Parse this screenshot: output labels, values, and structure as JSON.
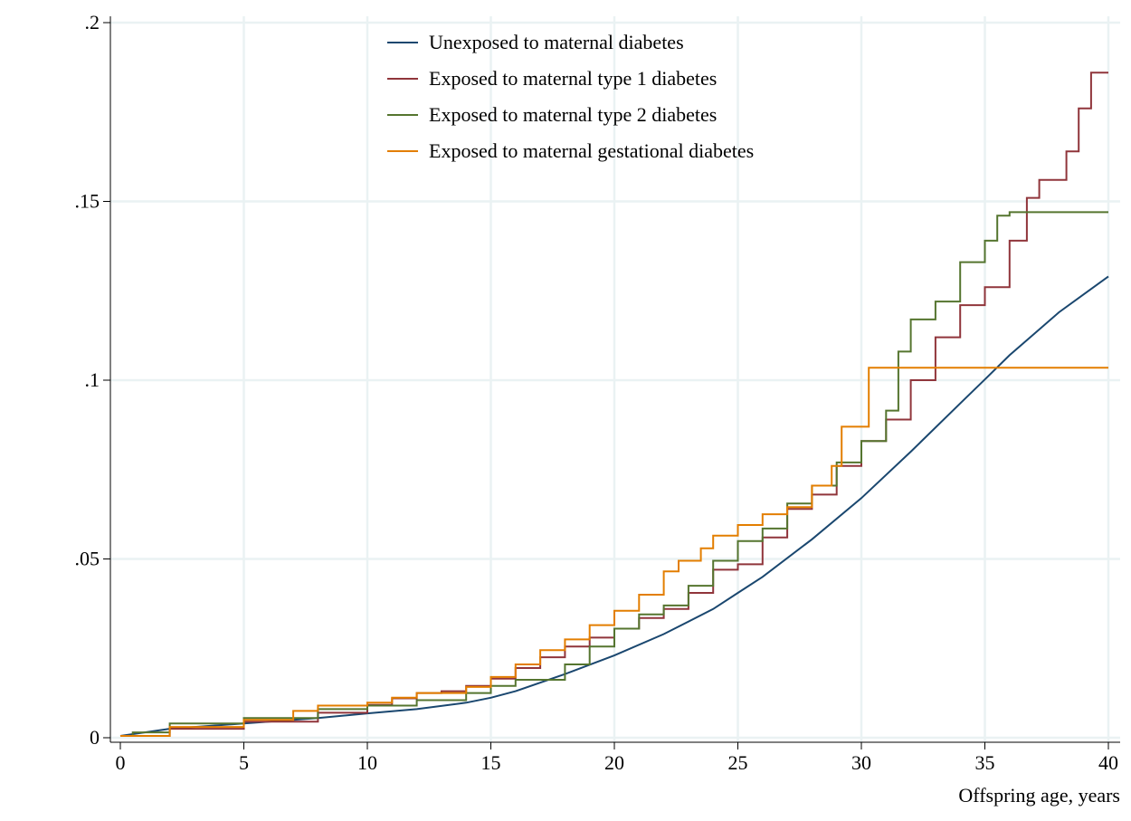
{
  "chart_data": {
    "type": "line",
    "title": "",
    "xlabel": "Offspring age, years",
    "ylabel": "",
    "xlim": [
      0,
      40
    ],
    "ylim": [
      0,
      0.2
    ],
    "xticks": [
      0,
      5,
      10,
      15,
      20,
      25,
      30,
      35,
      40
    ],
    "xtick_labels": [
      "0",
      "5",
      "10",
      "15",
      "20",
      "25",
      "30",
      "35",
      "40"
    ],
    "yticks": [
      0,
      0.05,
      0.1,
      0.15,
      0.2
    ],
    "ytick_labels": [
      "0",
      ".05",
      ".1",
      ".15",
      ".2"
    ],
    "grid": true,
    "legend_position": "top-center",
    "series": [
      {
        "name": "Unexposed to maternal diabetes",
        "color": "#1a476f",
        "step": false,
        "points": [
          [
            0,
            0.0005
          ],
          [
            2,
            0.0025
          ],
          [
            5,
            0.004
          ],
          [
            8,
            0.0055
          ],
          [
            10,
            0.0068
          ],
          [
            12,
            0.008
          ],
          [
            14,
            0.0098
          ],
          [
            15,
            0.0112
          ],
          [
            16,
            0.013
          ],
          [
            18,
            0.0178
          ],
          [
            20,
            0.023
          ],
          [
            22,
            0.029
          ],
          [
            24,
            0.036
          ],
          [
            25,
            0.0405
          ],
          [
            26,
            0.045
          ],
          [
            28,
            0.0555
          ],
          [
            30,
            0.067
          ],
          [
            32,
            0.08
          ],
          [
            34,
            0.0935
          ],
          [
            35,
            0.1002
          ],
          [
            36,
            0.107
          ],
          [
            38,
            0.119
          ],
          [
            39,
            0.124
          ],
          [
            40,
            0.129
          ]
        ]
      },
      {
        "name": "Exposed to maternal type 1 diabetes",
        "color": "#90353b",
        "step": true,
        "points": [
          [
            0,
            0.0005
          ],
          [
            2,
            0.0025
          ],
          [
            5,
            0.0045
          ],
          [
            8,
            0.007
          ],
          [
            10,
            0.0092
          ],
          [
            11,
            0.011
          ],
          [
            12,
            0.0125
          ],
          [
            13,
            0.013
          ],
          [
            14,
            0.0145
          ],
          [
            15,
            0.0165
          ],
          [
            16,
            0.0195
          ],
          [
            17,
            0.0225
          ],
          [
            18,
            0.0255
          ],
          [
            19,
            0.028
          ],
          [
            20,
            0.0305
          ],
          [
            21,
            0.0335
          ],
          [
            22,
            0.036
          ],
          [
            23,
            0.0405
          ],
          [
            24,
            0.047
          ],
          [
            25,
            0.0485
          ],
          [
            26,
            0.056
          ],
          [
            27,
            0.064
          ],
          [
            28,
            0.068
          ],
          [
            29,
            0.076
          ],
          [
            30,
            0.083
          ],
          [
            31,
            0.089
          ],
          [
            32,
            0.1
          ],
          [
            33,
            0.112
          ],
          [
            34,
            0.121
          ],
          [
            35,
            0.126
          ],
          [
            36,
            0.139
          ],
          [
            36.7,
            0.151
          ],
          [
            37.2,
            0.156
          ],
          [
            38.3,
            0.164
          ],
          [
            38.8,
            0.176
          ],
          [
            39.3,
            0.186
          ],
          [
            40,
            0.186
          ]
        ]
      },
      {
        "name": "Exposed to maternal type 2 diabetes",
        "color": "#55752f",
        "step": true,
        "points": [
          [
            0,
            0.0005
          ],
          [
            0.5,
            0.0015
          ],
          [
            2,
            0.004
          ],
          [
            5,
            0.0055
          ],
          [
            8,
            0.008
          ],
          [
            10,
            0.009
          ],
          [
            12,
            0.0105
          ],
          [
            14,
            0.0125
          ],
          [
            15,
            0.0145
          ],
          [
            16,
            0.0162
          ],
          [
            18,
            0.0205
          ],
          [
            19,
            0.0255
          ],
          [
            20,
            0.0305
          ],
          [
            21,
            0.0345
          ],
          [
            22,
            0.037
          ],
          [
            23,
            0.0425
          ],
          [
            24,
            0.0495
          ],
          [
            25,
            0.055
          ],
          [
            26,
            0.0585
          ],
          [
            27,
            0.0655
          ],
          [
            28,
            0.0705
          ],
          [
            29,
            0.077
          ],
          [
            30,
            0.083
          ],
          [
            31,
            0.0915
          ],
          [
            31.5,
            0.108
          ],
          [
            32,
            0.117
          ],
          [
            33,
            0.122
          ],
          [
            34,
            0.133
          ],
          [
            35,
            0.139
          ],
          [
            35.5,
            0.146
          ],
          [
            36,
            0.147
          ],
          [
            40,
            0.147
          ]
        ]
      },
      {
        "name": "Exposed to maternal gestational diabetes",
        "color": "#e37e00",
        "step": true,
        "points": [
          [
            0,
            0.0005
          ],
          [
            2,
            0.003
          ],
          [
            5,
            0.005
          ],
          [
            7,
            0.0075
          ],
          [
            8,
            0.009
          ],
          [
            10,
            0.0098
          ],
          [
            11,
            0.0112
          ],
          [
            12,
            0.0125
          ],
          [
            14,
            0.0142
          ],
          [
            15,
            0.017
          ],
          [
            16,
            0.0205
          ],
          [
            17,
            0.0245
          ],
          [
            18,
            0.0275
          ],
          [
            19,
            0.0315
          ],
          [
            20,
            0.0355
          ],
          [
            21,
            0.04
          ],
          [
            22,
            0.0465
          ],
          [
            22.6,
            0.0495
          ],
          [
            23.5,
            0.053
          ],
          [
            24,
            0.0565
          ],
          [
            25,
            0.0595
          ],
          [
            26,
            0.0625
          ],
          [
            27,
            0.0645
          ],
          [
            28,
            0.0705
          ],
          [
            28.8,
            0.076
          ],
          [
            29.2,
            0.087
          ],
          [
            30.3,
            0.1035
          ],
          [
            40,
            0.1035
          ]
        ]
      }
    ]
  }
}
